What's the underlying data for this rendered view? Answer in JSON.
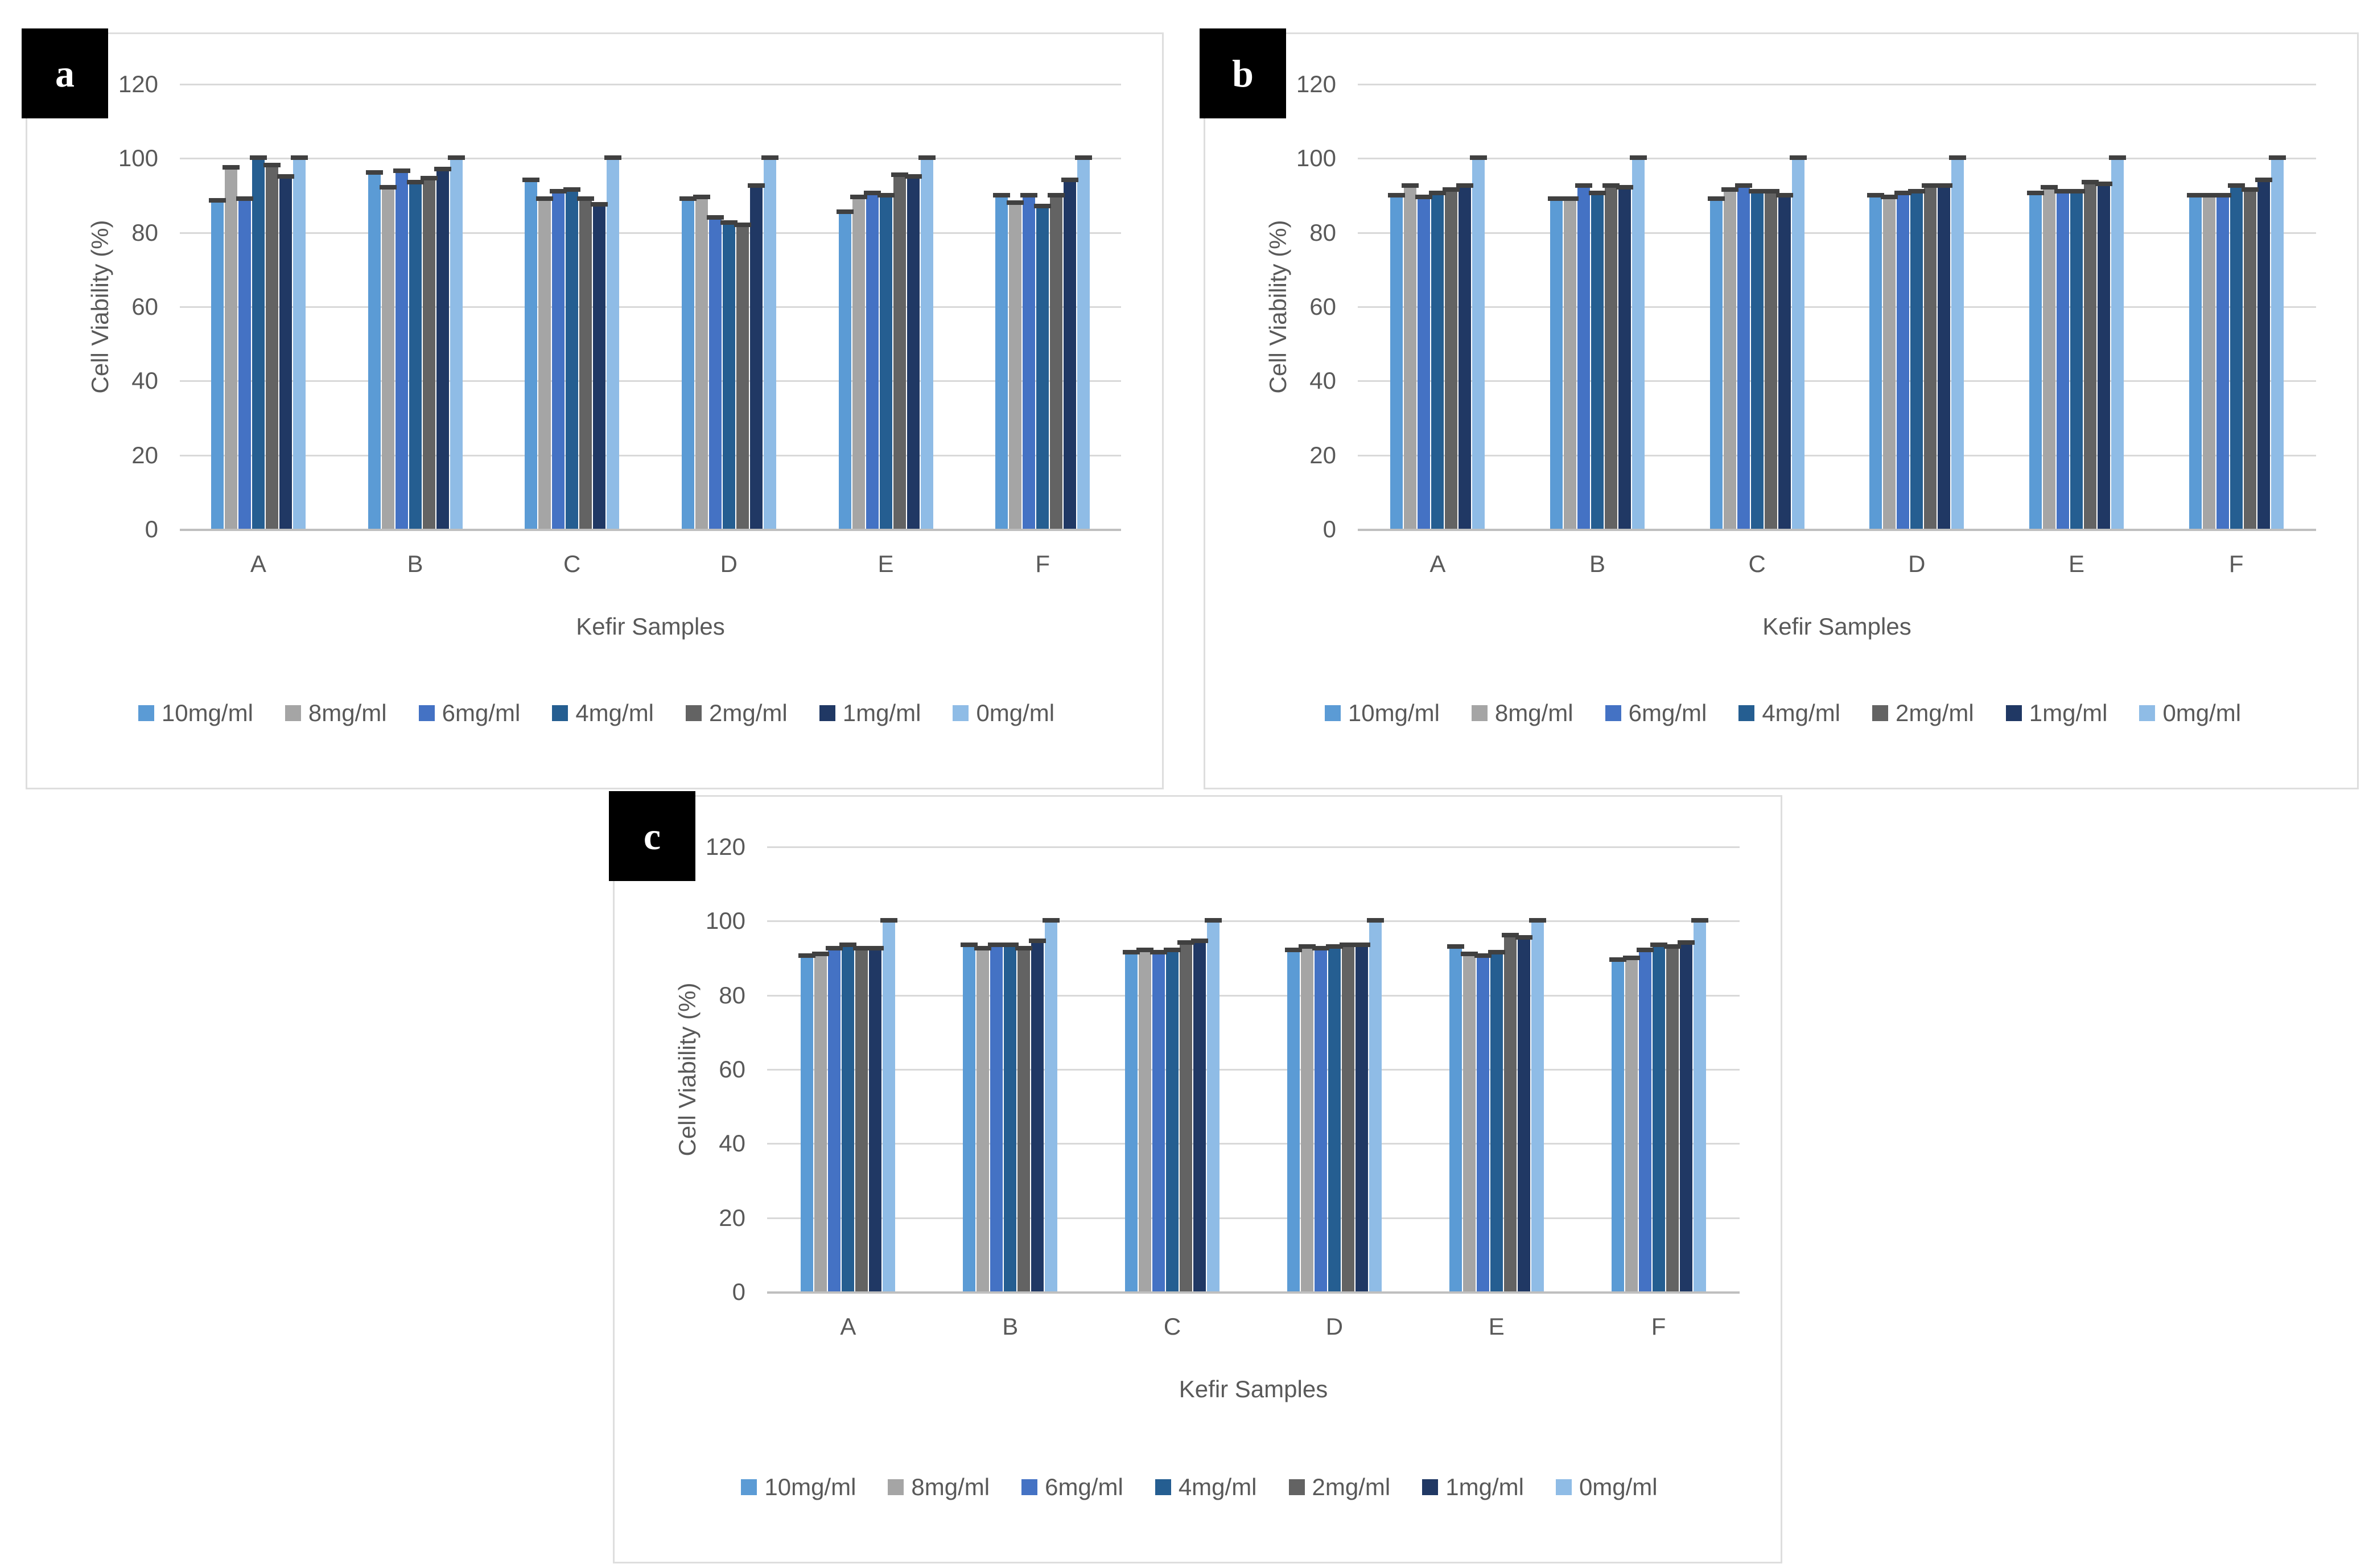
{
  "style": {
    "text_color": "#595959",
    "gridline_color": "#d9d9d9",
    "axis_line_color": "#bfbfbf",
    "panel_border_color": "#dedede",
    "errorbar_color": "#404040",
    "panel_label_bg": "#000000",
    "panel_label_color": "#ffffff"
  },
  "chart_data": [
    {
      "type": "bar",
      "panel_label": "a",
      "xlabel": "Kefir Samples",
      "ylabel": "Cell Viability (%)",
      "categories": [
        "A",
        "B",
        "C",
        "D",
        "E",
        "F"
      ],
      "ylim": [
        0,
        120
      ],
      "yticks": [
        0,
        20,
        40,
        60,
        80,
        100,
        120
      ],
      "grid": true,
      "legend_position": "bottom",
      "error_bar": 1,
      "series": [
        {
          "name": "10mg/ml",
          "color": "#5B9BD5",
          "values": [
            88.5,
            96,
            94,
            89,
            85.5,
            90
          ]
        },
        {
          "name": "8mg/ml",
          "color": "#A5A5A5",
          "values": [
            97.5,
            92,
            89,
            89.5,
            89.5,
            88
          ]
        },
        {
          "name": "6mg/ml",
          "color": "#4472C4",
          "values": [
            89,
            96.5,
            91,
            84,
            90.5,
            90
          ]
        },
        {
          "name": "4mg/ml",
          "color": "#255E91",
          "values": [
            100,
            93.5,
            91.5,
            82.5,
            90,
            87
          ]
        },
        {
          "name": "2mg/ml",
          "color": "#636363",
          "values": [
            98,
            94.5,
            89,
            82,
            95.5,
            90
          ]
        },
        {
          "name": "1mg/ml",
          "color": "#203864",
          "values": [
            95,
            97,
            87.5,
            92.5,
            95,
            94
          ]
        },
        {
          "name": "0mg/ml",
          "color": "#8FBCE6",
          "values": [
            100,
            100,
            100,
            100,
            100,
            100
          ]
        }
      ]
    },
    {
      "type": "bar",
      "panel_label": "b",
      "xlabel": "Kefir Samples",
      "ylabel": "Cell Viability (%)",
      "categories": [
        "A",
        "B",
        "C",
        "D",
        "E",
        "F"
      ],
      "ylim": [
        0,
        120
      ],
      "yticks": [
        0,
        20,
        40,
        60,
        80,
        100,
        120
      ],
      "grid": true,
      "legend_position": "bottom",
      "error_bar": 1,
      "series": [
        {
          "name": "10mg/ml",
          "color": "#5B9BD5",
          "values": [
            90,
            89,
            89,
            90,
            90.5,
            90
          ]
        },
        {
          "name": "8mg/ml",
          "color": "#A5A5A5",
          "values": [
            92.5,
            89,
            91.5,
            89.5,
            92,
            90
          ]
        },
        {
          "name": "6mg/ml",
          "color": "#4472C4",
          "values": [
            89.5,
            92.5,
            92.5,
            90.5,
            91,
            90
          ]
        },
        {
          "name": "4mg/ml",
          "color": "#255E91",
          "values": [
            90.5,
            90.5,
            91,
            91,
            91,
            92.5
          ]
        },
        {
          "name": "2mg/ml",
          "color": "#636363",
          "values": [
            91.5,
            92.5,
            91,
            92.5,
            93.5,
            91.5
          ]
        },
        {
          "name": "1mg/ml",
          "color": "#203864",
          "values": [
            92.5,
            92,
            90,
            92.5,
            93,
            94
          ]
        },
        {
          "name": "0mg/ml",
          "color": "#8FBCE6",
          "values": [
            100,
            100,
            100,
            100,
            100,
            100
          ]
        }
      ]
    },
    {
      "type": "bar",
      "panel_label": "c",
      "xlabel": "Kefir Samples",
      "ylabel": "Cell Viability (%)",
      "categories": [
        "A",
        "B",
        "C",
        "D",
        "E",
        "F"
      ],
      "ylim": [
        0,
        120
      ],
      "yticks": [
        0,
        20,
        40,
        60,
        80,
        100,
        120
      ],
      "grid": true,
      "legend_position": "bottom",
      "error_bar": 1,
      "series": [
        {
          "name": "10mg/ml",
          "color": "#5B9BD5",
          "values": [
            90.5,
            93.5,
            91.5,
            92,
            93,
            89.5
          ]
        },
        {
          "name": "8mg/ml",
          "color": "#A5A5A5",
          "values": [
            91,
            92.5,
            92,
            93,
            91,
            90
          ]
        },
        {
          "name": "6mg/ml",
          "color": "#4472C4",
          "values": [
            92.5,
            93.5,
            91.5,
            92.5,
            90.5,
            92
          ]
        },
        {
          "name": "4mg/ml",
          "color": "#255E91",
          "values": [
            93.5,
            93.5,
            92,
            93,
            91.5,
            93.5
          ]
        },
        {
          "name": "2mg/ml",
          "color": "#636363",
          "values": [
            92.5,
            92.5,
            94,
            93.5,
            96,
            93
          ]
        },
        {
          "name": "1mg/ml",
          "color": "#203864",
          "values": [
            92.5,
            94.5,
            94.5,
            93.5,
            95.5,
            94
          ]
        },
        {
          "name": "0mg/ml",
          "color": "#8FBCE6",
          "values": [
            100,
            100,
            100,
            100,
            100,
            100
          ]
        }
      ]
    }
  ]
}
